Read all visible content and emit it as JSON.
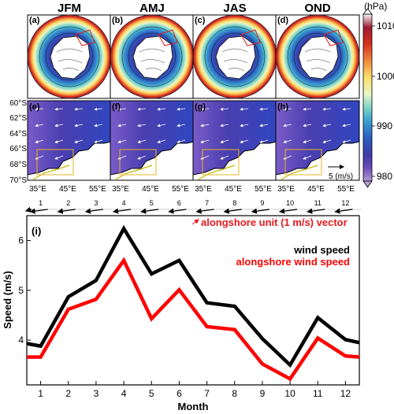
{
  "maps": {
    "seasons": [
      "JFM",
      "AMJ",
      "JAS",
      "OND"
    ],
    "map_labels": [
      "(a)",
      "(b)",
      "(c)",
      "(d)"
    ],
    "region_labels": [
      "(e)",
      "(f)",
      "(g)",
      "(h)"
    ],
    "lat_labels": [
      "60°S",
      "62°S",
      "64°S",
      "66°S",
      "68°S",
      "70°S"
    ],
    "lon_labels": [
      "35°E",
      "45°E",
      "55°E"
    ],
    "scale_arrow_label": "5 (m/s)",
    "colorbar": {
      "unit": "(hPa)",
      "ticks": [
        "1010",
        "1000",
        "990",
        "980"
      ],
      "colors": [
        "#f7f4f9",
        "#9b1c31",
        "#d7301f",
        "#f08a3c",
        "#fde06c",
        "#e8f4c8",
        "#7fd5c8",
        "#3aa0d0",
        "#2d5fc0",
        "#3b3aa7",
        "#6b4bb5",
        "#b49bd8"
      ]
    }
  },
  "vector_strip": {
    "months": [
      "1",
      "2",
      "3",
      "4",
      "5",
      "6",
      "7",
      "8",
      "9",
      "10",
      "11",
      "12"
    ],
    "legend_label": "alongshore unit (1 m/s) vector",
    "arrow_color": "#000000",
    "unit_color": "#e8181c"
  },
  "chart_data": {
    "type": "line",
    "panel_label": "(i)",
    "x": [
      0.5,
      1,
      2,
      3,
      4,
      5,
      6,
      7,
      8,
      9,
      10,
      11,
      12,
      12.5
    ],
    "xticks": [
      1,
      2,
      3,
      4,
      5,
      6,
      7,
      8,
      9,
      10,
      11,
      12
    ],
    "xlabel": "Month",
    "ylabel": "Speed (m/s)",
    "ylim": [
      3.1,
      6.5
    ],
    "xlim": [
      0.5,
      12.5
    ],
    "yticks": [
      4,
      5,
      6
    ],
    "series": [
      {
        "name": "wind speed",
        "color": "#000000",
        "values": [
          3.93,
          3.88,
          4.87,
          5.2,
          6.24,
          5.33,
          5.6,
          4.75,
          4.68,
          4.03,
          3.5,
          4.45,
          4.01,
          3.95
        ]
      },
      {
        "name": "alongshore wind speed",
        "color": "#ff0000",
        "values": [
          3.66,
          3.66,
          4.62,
          4.82,
          5.6,
          4.43,
          5.01,
          4.27,
          4.21,
          3.52,
          3.22,
          4.04,
          3.68,
          3.66
        ]
      }
    ],
    "grid": false,
    "legend": "top-right"
  }
}
